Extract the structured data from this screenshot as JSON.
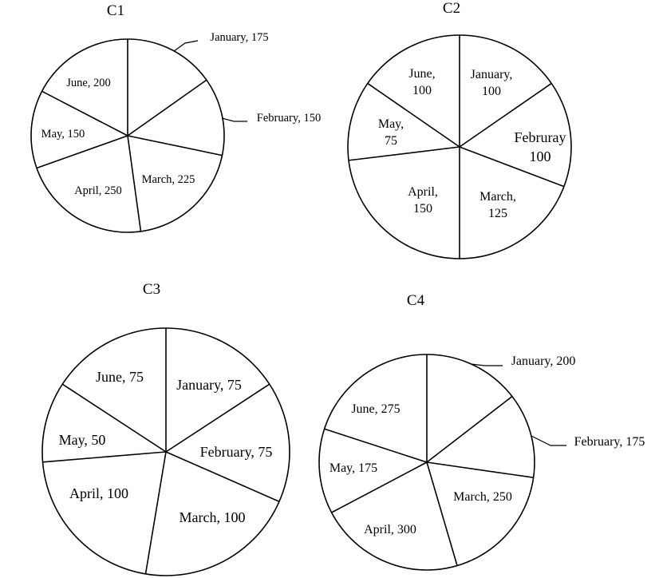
{
  "chart_data": [
    {
      "type": "pie",
      "title": "C1",
      "categories": [
        "January",
        "February",
        "March",
        "April",
        "May",
        "June"
      ],
      "values": [
        175,
        150,
        225,
        250,
        150,
        200
      ],
      "labels": [
        "January, 175",
        "February, 150",
        "March, 225",
        "April, 250",
        "May, 150",
        "June, 200"
      ]
    },
    {
      "type": "pie",
      "title": "C2",
      "categories": [
        "January",
        "Februray",
        "March",
        "April",
        "May",
        "June"
      ],
      "values": [
        100,
        100,
        125,
        150,
        75,
        100
      ],
      "labels": [
        [
          "January,",
          "100"
        ],
        [
          "Februray",
          "100"
        ],
        [
          "March,",
          "125"
        ],
        [
          "April,",
          "150"
        ],
        [
          "May,",
          "75"
        ],
        [
          "June,",
          "100"
        ]
      ]
    },
    {
      "type": "pie",
      "title": "C3",
      "categories": [
        "January",
        "February",
        "March",
        "April",
        "May",
        "June"
      ],
      "values": [
        75,
        75,
        100,
        100,
        50,
        75
      ],
      "labels": [
        "January, 75",
        "February, 75",
        "March, 100",
        "April, 100",
        "May, 50",
        "June, 75"
      ]
    },
    {
      "type": "pie",
      "title": "C4",
      "categories": [
        "January",
        "February",
        "March",
        "April",
        "May",
        "June"
      ],
      "values": [
        200,
        175,
        250,
        300,
        175,
        275
      ],
      "labels": [
        "January, 200",
        "February, 175",
        "March, 250",
        "April, 300",
        "May, 175",
        "June, 275"
      ]
    }
  ]
}
